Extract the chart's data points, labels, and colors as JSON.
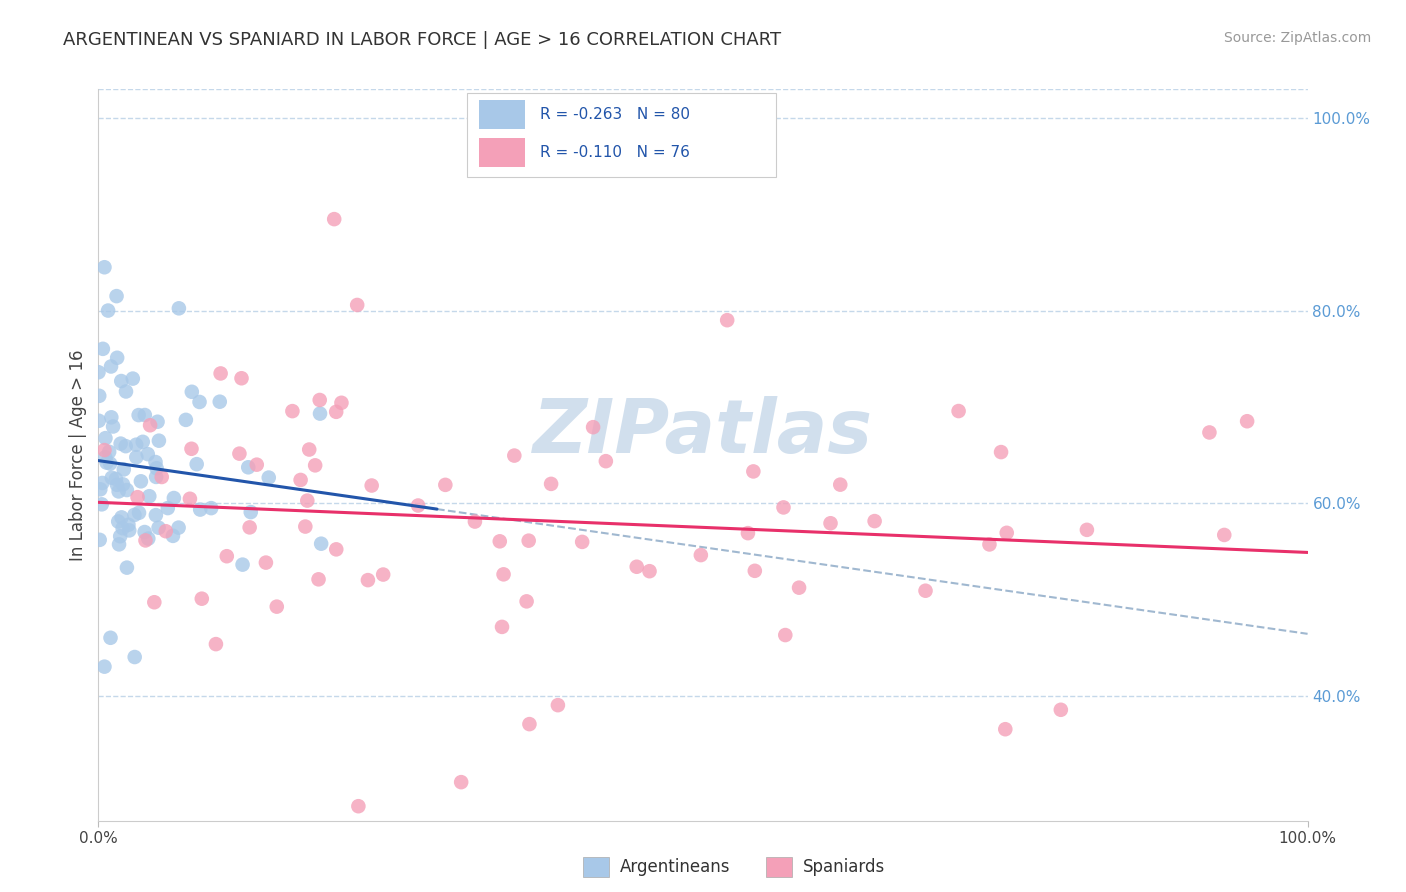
{
  "title": "ARGENTINEAN VS SPANIARD IN LABOR FORCE | AGE > 16 CORRELATION CHART",
  "source_text": "Source: ZipAtlas.com",
  "ylabel": "In Labor Force | Age > 16",
  "x_min": 0.0,
  "x_max": 1.0,
  "y_min": 0.27,
  "y_max": 1.03,
  "yticks": [
    0.4,
    0.6,
    0.8,
    1.0
  ],
  "ytick_labels": [
    "40.0%",
    "60.0%",
    "80.0%",
    "100.0%"
  ],
  "xtick_left": "0.0%",
  "xtick_right": "100.0%",
  "blue_color": "#a8c8e8",
  "pink_color": "#f4a0b8",
  "blue_line_color": "#2255aa",
  "pink_line_color": "#e8306a",
  "dash_color": "#a0b8d0",
  "watermark_color": "#ccdcec",
  "legend_r1": "R = -0.263",
  "legend_n1": "N = 80",
  "legend_r2": "R = -0.110",
  "legend_n2": "N = 76",
  "legend_label1": "Argentineans",
  "legend_label2": "Spaniards",
  "title_fontsize": 13,
  "tick_fontsize": 11,
  "legend_fontsize": 11
}
